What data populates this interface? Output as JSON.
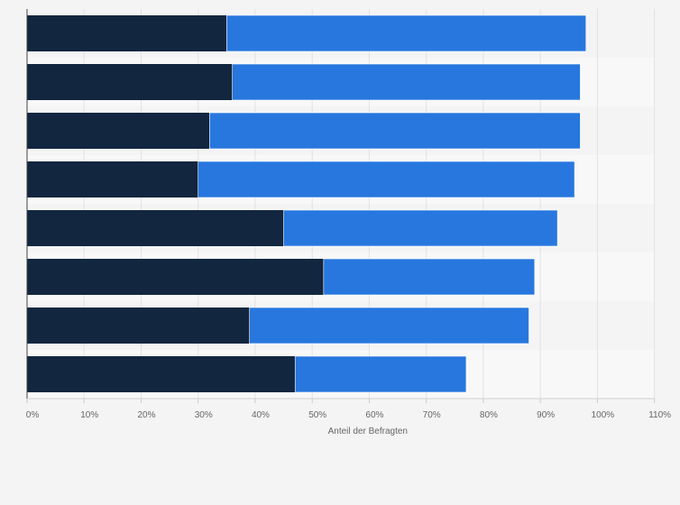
{
  "chart_data": {
    "type": "bar",
    "orientation": "horizontal",
    "stacked": true,
    "title": "",
    "xlabel": "Anteil der Befragten",
    "ylabel": "",
    "categories": [
      "",
      "",
      "",
      "",
      "",
      "",
      "",
      ""
    ],
    "xlim": [
      0,
      110
    ],
    "x_ticks": [
      0,
      10,
      20,
      30,
      40,
      50,
      60,
      70,
      80,
      90,
      100,
      110
    ],
    "x_tick_labels": [
      "0%",
      "10%",
      "20%",
      "30%",
      "40%",
      "50%",
      "60%",
      "70%",
      "80%",
      "90%",
      "100%",
      "110%"
    ],
    "grid": true,
    "legend": "none",
    "series": [
      {
        "color": "#12263f",
        "values": [
          35,
          36,
          32,
          30,
          45,
          52,
          39,
          47
        ]
      },
      {
        "color": "#2777de",
        "values": [
          63,
          61,
          65,
          66,
          48,
          37,
          49,
          30
        ]
      }
    ]
  }
}
